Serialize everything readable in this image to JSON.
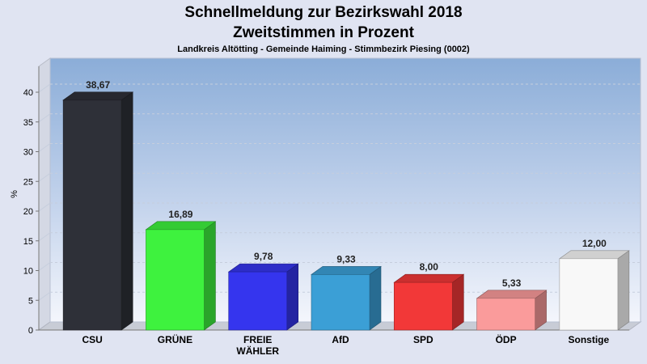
{
  "chart_data": {
    "type": "bar",
    "title": "Schnellmeldung zur Bezirkswahl 2018",
    "subtitle": "Zweitstimmen in Prozent",
    "caption": "Landkreis Altötting - Gemeinde Haiming - Stimmbezirk Piesing (0002)",
    "ylabel": "%",
    "xlabel": "",
    "ylim": [
      0,
      40
    ],
    "yticks": [
      0,
      5,
      10,
      15,
      20,
      25,
      30,
      35,
      40
    ],
    "grid": true,
    "legend": "none",
    "categories": [
      "CSU",
      "GRÜNE",
      "FREIE WÄHLER",
      "AfD",
      "SPD",
      "ÖDP",
      "Sonstige"
    ],
    "category_lines": [
      [
        "CSU"
      ],
      [
        "GRÜNE"
      ],
      [
        "FREIE",
        "WÄHLER"
      ],
      [
        "AfD"
      ],
      [
        "SPD"
      ],
      [
        "ÖDP"
      ],
      [
        "Sonstige"
      ]
    ],
    "values": [
      38.67,
      16.89,
      9.78,
      9.33,
      8.0,
      5.33,
      12.0
    ],
    "value_labels": [
      "38,67",
      "16,89",
      "9,78",
      "9,33",
      "8,00",
      "5,33",
      "12,00"
    ],
    "colors": [
      "#2e3038",
      "#3ef23e",
      "#3535ee",
      "#3b9fd6",
      "#f23838",
      "#fa9b9b",
      "#f8f8f8"
    ]
  }
}
